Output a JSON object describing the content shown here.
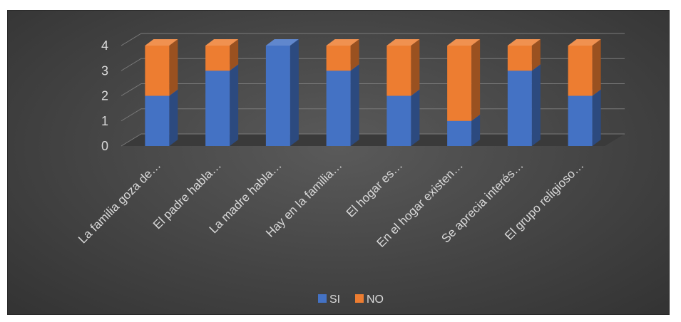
{
  "chart_data": {
    "type": "bar",
    "stacked": true,
    "three_d": true,
    "categories": [
      "La familia goza de…",
      "El padre habla…",
      "La madre habla…",
      "Hay en la familia…",
      "El hogar es…",
      "En el hogar existen…",
      "Se aprecia interés…",
      "El grupo religioso…"
    ],
    "series": [
      {
        "name": "SI",
        "values": [
          2,
          3,
          4,
          3,
          2,
          1,
          3,
          2
        ],
        "color": "#4472C4"
      },
      {
        "name": "NO",
        "values": [
          2,
          1,
          0,
          1,
          2,
          3,
          1,
          2
        ],
        "color": "#ED7D31"
      }
    ],
    "ylim": [
      0,
      4
    ],
    "yticks": [
      "0",
      "1",
      "2",
      "3",
      "4"
    ],
    "grid": true,
    "legend_position": "bottom",
    "background": "dark"
  }
}
